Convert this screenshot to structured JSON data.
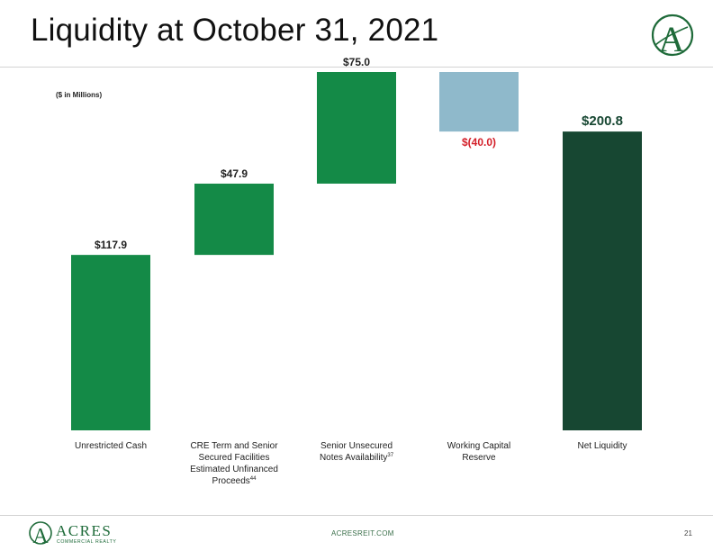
{
  "slide": {
    "title": "Liquidity at October 31, 2021",
    "footer_site": "ACRESREIT.COM",
    "page_number": "21"
  },
  "logo": {
    "letter": "A",
    "wordmark": "ACRES",
    "tagline": "COMMERCIAL REALTY",
    "color": "#1f6b3a"
  },
  "chart_data": {
    "type": "waterfall",
    "units_note": "($ in Millions)",
    "categories": [
      {
        "label_lines": [
          "Unrestricted Cash"
        ],
        "sup": ""
      },
      {
        "label_lines": [
          "CRE Term and Senior",
          "Secured Facilities",
          "Estimated Unfinanced",
          "Proceeds"
        ],
        "sup": "44"
      },
      {
        "label_lines": [
          "Senior Unsecured",
          "Notes Availability"
        ],
        "sup": "37"
      },
      {
        "label_lines": [
          "Working Capital",
          "Reserve"
        ],
        "sup": ""
      },
      {
        "label_lines": [
          "Net Liquidity"
        ],
        "sup": ""
      }
    ],
    "values": [
      117.9,
      47.9,
      75.0,
      -40.0,
      200.8
    ],
    "kinds": [
      "increase",
      "increase",
      "increase",
      "decrease",
      "total"
    ],
    "data_labels": [
      "$117.9",
      "$47.9",
      "$75.0",
      "$(40.0)",
      "$200.8"
    ],
    "ylim": [
      0,
      240.8
    ],
    "colors": {
      "increase": "#148a47",
      "decrease": "#8fb9cb",
      "total": "#174732",
      "label": "#222222",
      "negative_label": "#d4202a",
      "total_label": "#174732"
    }
  }
}
